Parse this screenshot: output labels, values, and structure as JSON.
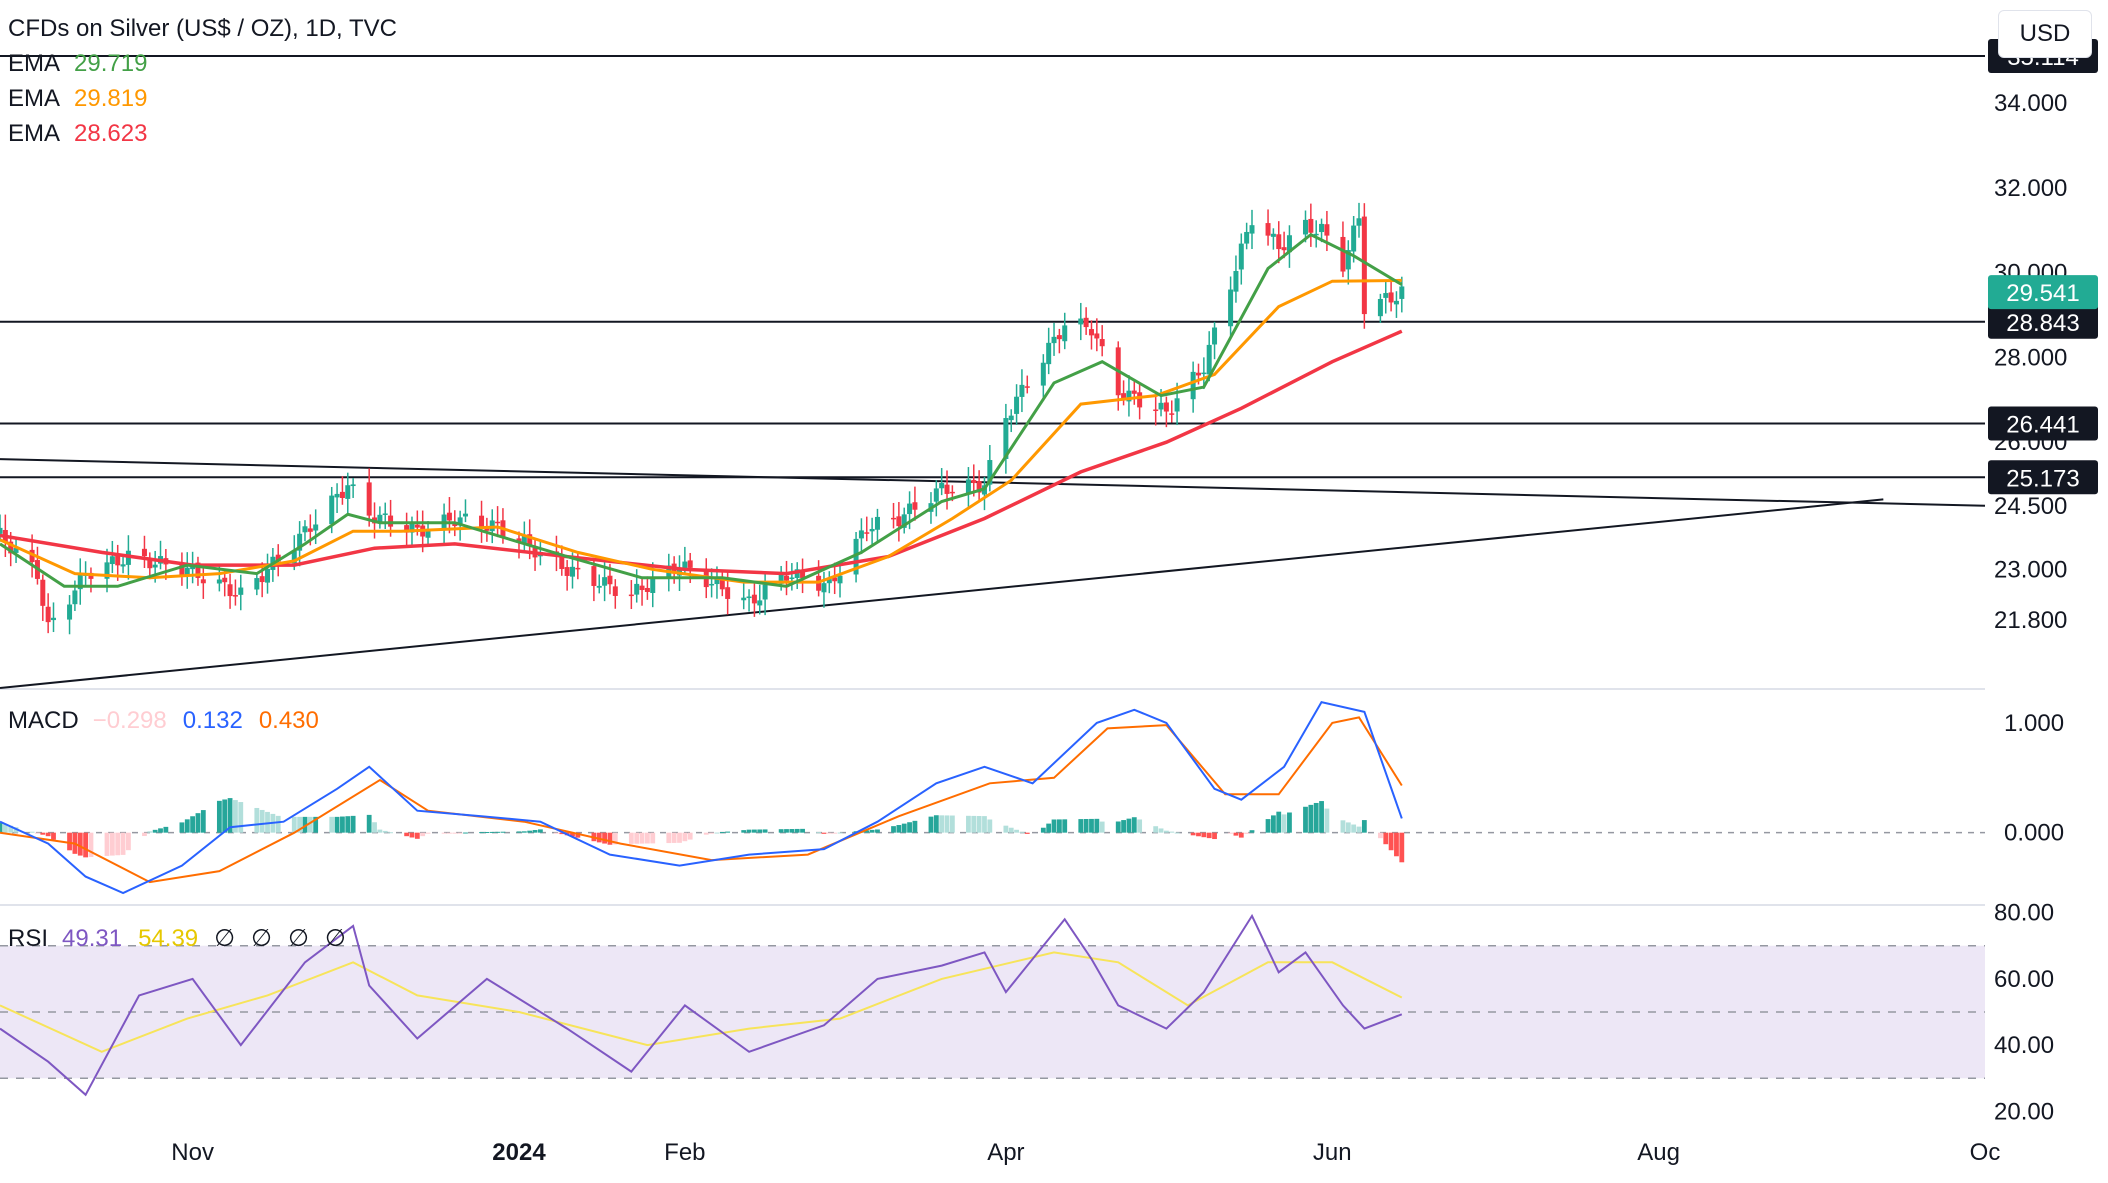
{
  "header": {
    "title": "CFDs on Silver (US$ / OZ), 1D, TVC",
    "currency_button": "USD",
    "ema_rows": [
      {
        "label": "EMA",
        "value": "29.719",
        "color": "#43a047"
      },
      {
        "label": "EMA",
        "value": "29.819",
        "color": "#ff9800"
      },
      {
        "label": "EMA",
        "value": "28.623",
        "color": "#f23645"
      }
    ]
  },
  "colors": {
    "up": "#22ab94",
    "down": "#f23645",
    "macd_line": "#2962ff",
    "signal_line": "#ff6d00",
    "hist_up_strong": "#26a69a",
    "hist_up_weak": "#b2dfdb",
    "hist_down_strong": "#ff5252",
    "hist_down_weak": "#ffcdd2",
    "rsi_line": "#7e57c2",
    "rsi_ma": "#f7e45a",
    "rsi_band": "#ede7f6"
  },
  "chart_data": [
    {
      "type": "candlestick",
      "title": "CFDs on Silver (US$ / OZ), 1D, TVC",
      "x_labels": [
        "Nov",
        "2024",
        "Feb",
        "Apr",
        "Jun",
        "Aug",
        "Oc"
      ],
      "x_label_dates": [
        "2023-11-01",
        "2024-01-01",
        "2024-02-01",
        "2024-04-01",
        "2024-06-01",
        "2024-08-01",
        "2024-10-01"
      ],
      "date_range": [
        "2023-09-26",
        "2024-10-01"
      ],
      "y_ticks": [
        "34.000",
        "32.000",
        "30.000",
        "28.000",
        "26.000",
        "24.500",
        "23.000",
        "21.800"
      ],
      "y_range": [
        20.2,
        36.2
      ],
      "price_label": "29.541",
      "horizontal_levels": [
        {
          "value": 35.114,
          "label": "35.114"
        },
        {
          "value": 28.843,
          "label": "28.843"
        },
        {
          "value": 26.441,
          "label": "26.441"
        },
        {
          "value": 25.173,
          "label": "25.173"
        }
      ],
      "trendlines": [
        {
          "from": [
            "2023-09-26",
            25.6
          ],
          "to": [
            "2024-10-01",
            24.5
          ]
        },
        {
          "from": [
            "2023-09-26",
            20.2
          ],
          "to": [
            "2024-09-12",
            24.65
          ]
        }
      ],
      "close_path": [
        [
          "2023-09-26",
          23.8
        ],
        [
          "2023-10-03",
          22.9
        ],
        [
          "2023-10-05",
          21.6
        ],
        [
          "2023-10-12",
          22.9
        ],
        [
          "2023-10-20",
          23.3
        ],
        [
          "2023-10-31",
          23.0
        ],
        [
          "2023-11-10",
          22.4
        ],
        [
          "2023-11-20",
          23.6
        ],
        [
          "2023-11-30",
          25.0
        ],
        [
          "2023-12-04",
          24.3
        ],
        [
          "2023-12-13",
          23.9
        ],
        [
          "2023-12-20",
          24.2
        ],
        [
          "2023-12-28",
          24.0
        ],
        [
          "2024-01-10",
          23.0
        ],
        [
          "2024-01-22",
          22.4
        ],
        [
          "2024-01-31",
          23.1
        ],
        [
          "2024-02-13",
          22.2
        ],
        [
          "2024-02-20",
          22.9
        ],
        [
          "2024-02-28",
          22.6
        ],
        [
          "2024-03-06",
          24.0
        ],
        [
          "2024-03-12",
          24.2
        ],
        [
          "2024-03-20",
          24.9
        ],
        [
          "2024-03-28",
          25.0
        ],
        [
          "2024-04-01",
          26.6
        ],
        [
          "2024-04-12",
          28.8
        ],
        [
          "2024-04-17",
          28.7
        ],
        [
          "2024-04-22",
          27.2
        ],
        [
          "2024-05-01",
          26.7
        ],
        [
          "2024-05-08",
          27.8
        ],
        [
          "2024-05-17",
          31.3
        ],
        [
          "2024-05-22",
          30.6
        ],
        [
          "2024-05-27",
          31.1
        ],
        [
          "2024-05-30",
          31.0
        ],
        [
          "2024-06-03",
          30.2
        ],
        [
          "2024-06-06",
          31.3
        ],
        [
          "2024-06-07",
          29.2
        ],
        [
          "2024-06-12",
          29.4
        ],
        [
          "2024-06-14",
          29.54
        ]
      ],
      "ema_fast": [
        [
          "2023-09-26",
          23.6
        ],
        [
          "2023-10-08",
          22.6
        ],
        [
          "2023-10-18",
          22.6
        ],
        [
          "2023-10-31",
          23.1
        ],
        [
          "2023-11-13",
          22.9
        ],
        [
          "2023-11-22",
          23.6
        ],
        [
          "2023-11-30",
          24.3
        ],
        [
          "2023-12-06",
          24.1
        ],
        [
          "2023-12-20",
          24.1
        ],
        [
          "2024-01-10",
          23.3
        ],
        [
          "2024-01-24",
          22.8
        ],
        [
          "2024-02-08",
          22.8
        ],
        [
          "2024-02-20",
          22.6
        ],
        [
          "2024-03-05",
          23.4
        ],
        [
          "2024-03-20",
          24.6
        ],
        [
          "2024-03-28",
          24.9
        ],
        [
          "2024-04-10",
          27.4
        ],
        [
          "2024-04-19",
          27.9
        ],
        [
          "2024-04-30",
          27.1
        ],
        [
          "2024-05-08",
          27.3
        ],
        [
          "2024-05-20",
          30.1
        ],
        [
          "2024-05-28",
          30.9
        ],
        [
          "2024-06-05",
          30.4
        ],
        [
          "2024-06-14",
          29.72
        ]
      ],
      "ema_mid": [
        [
          "2023-09-26",
          23.7
        ],
        [
          "2023-10-10",
          22.9
        ],
        [
          "2023-10-24",
          22.8
        ],
        [
          "2023-11-06",
          22.9
        ],
        [
          "2023-11-20",
          23.2
        ],
        [
          "2023-12-01",
          23.9
        ],
        [
          "2023-12-10",
          23.9
        ],
        [
          "2023-12-28",
          24.0
        ],
        [
          "2024-01-12",
          23.4
        ],
        [
          "2024-01-26",
          23.0
        ],
        [
          "2024-02-12",
          22.7
        ],
        [
          "2024-02-26",
          22.7
        ],
        [
          "2024-03-10",
          23.3
        ],
        [
          "2024-03-22",
          24.2
        ],
        [
          "2024-04-02",
          25.1
        ],
        [
          "2024-04-15",
          26.9
        ],
        [
          "2024-04-29",
          27.1
        ],
        [
          "2024-05-10",
          27.6
        ],
        [
          "2024-05-22",
          29.2
        ],
        [
          "2024-06-01",
          29.8
        ],
        [
          "2024-06-14",
          29.82
        ]
      ],
      "ema_slow": [
        [
          "2023-09-26",
          23.8
        ],
        [
          "2023-10-15",
          23.4
        ],
        [
          "2023-11-01",
          23.1
        ],
        [
          "2023-11-20",
          23.1
        ],
        [
          "2023-12-05",
          23.5
        ],
        [
          "2023-12-20",
          23.6
        ],
        [
          "2024-01-10",
          23.3
        ],
        [
          "2024-02-01",
          23.0
        ],
        [
          "2024-02-20",
          22.9
        ],
        [
          "2024-03-10",
          23.3
        ],
        [
          "2024-03-28",
          24.2
        ],
        [
          "2024-04-15",
          25.3
        ],
        [
          "2024-05-01",
          26.0
        ],
        [
          "2024-05-15",
          26.8
        ],
        [
          "2024-06-01",
          27.9
        ],
        [
          "2024-06-14",
          28.62
        ]
      ]
    },
    {
      "type": "line",
      "title": "MACD",
      "legend_values": [
        "−0.298",
        "0.132",
        "0.430"
      ],
      "y_ticks": [
        "1.000",
        "0.000"
      ],
      "y_range": [
        -0.65,
        1.3
      ],
      "macd": [
        [
          "2023-09-26",
          0.1
        ],
        [
          "2023-10-05",
          -0.1
        ],
        [
          "2023-10-12",
          -0.4
        ],
        [
          "2023-10-19",
          -0.55
        ],
        [
          "2023-10-30",
          -0.3
        ],
        [
          "2023-11-08",
          0.05
        ],
        [
          "2023-11-18",
          0.1
        ],
        [
          "2023-11-28",
          0.4
        ],
        [
          "2023-12-04",
          0.6
        ],
        [
          "2023-12-13",
          0.2
        ],
        [
          "2023-12-25",
          0.15
        ],
        [
          "2024-01-05",
          0.1
        ],
        [
          "2024-01-18",
          -0.2
        ],
        [
          "2024-01-31",
          -0.3
        ],
        [
          "2024-02-13",
          -0.2
        ],
        [
          "2024-02-27",
          -0.15
        ],
        [
          "2024-03-08",
          0.1
        ],
        [
          "2024-03-19",
          0.45
        ],
        [
          "2024-03-28",
          0.6
        ],
        [
          "2024-04-06",
          0.45
        ],
        [
          "2024-04-18",
          1.0
        ],
        [
          "2024-04-25",
          1.12
        ],
        [
          "2024-05-01",
          1.0
        ],
        [
          "2024-05-10",
          0.4
        ],
        [
          "2024-05-15",
          0.3
        ],
        [
          "2024-05-23",
          0.6
        ],
        [
          "2024-05-30",
          1.19
        ],
        [
          "2024-06-07",
          1.1
        ],
        [
          "2024-06-14",
          0.13
        ]
      ],
      "signal": [
        [
          "2023-09-26",
          0.0
        ],
        [
          "2023-10-10",
          -0.1
        ],
        [
          "2023-10-24",
          -0.45
        ],
        [
          "2023-11-06",
          -0.35
        ],
        [
          "2023-11-20",
          0.0
        ],
        [
          "2023-12-06",
          0.48
        ],
        [
          "2023-12-15",
          0.2
        ],
        [
          "2024-01-02",
          0.1
        ],
        [
          "2024-01-20",
          -0.1
        ],
        [
          "2024-02-06",
          -0.25
        ],
        [
          "2024-02-24",
          -0.2
        ],
        [
          "2024-03-12",
          0.15
        ],
        [
          "2024-03-29",
          0.45
        ],
        [
          "2024-04-10",
          0.5
        ],
        [
          "2024-04-20",
          0.95
        ],
        [
          "2024-05-01",
          0.98
        ],
        [
          "2024-05-12",
          0.35
        ],
        [
          "2024-05-22",
          0.35
        ],
        [
          "2024-06-01",
          1.0
        ],
        [
          "2024-06-06",
          1.05
        ],
        [
          "2024-06-14",
          0.43
        ]
      ],
      "histogram_end": -0.298
    },
    {
      "type": "line",
      "title": "RSI",
      "legend_values": [
        "49.31",
        "54.39",
        "∅",
        "∅",
        "∅",
        "∅"
      ],
      "y_ticks": [
        "80.00",
        "60.00",
        "40.00",
        "20.00"
      ],
      "y_range": [
        18,
        82
      ],
      "bands": [
        70,
        50,
        30
      ],
      "rsi": [
        [
          "2023-09-26",
          45
        ],
        [
          "2023-10-05",
          35
        ],
        [
          "2023-10-12",
          25
        ],
        [
          "2023-10-22",
          55
        ],
        [
          "2023-11-01",
          60
        ],
        [
          "2023-11-10",
          40
        ],
        [
          "2023-11-22",
          65
        ],
        [
          "2023-12-01",
          76
        ],
        [
          "2023-12-04",
          58
        ],
        [
          "2023-12-13",
          42
        ],
        [
          "2023-12-26",
          60
        ],
        [
          "2024-01-10",
          45
        ],
        [
          "2024-01-22",
          32
        ],
        [
          "2024-02-01",
          52
        ],
        [
          "2024-02-13",
          38
        ],
        [
          "2024-02-27",
          46
        ],
        [
          "2024-03-08",
          60
        ],
        [
          "2024-03-20",
          64
        ],
        [
          "2024-03-28",
          68
        ],
        [
          "2024-04-01",
          56
        ],
        [
          "2024-04-12",
          78
        ],
        [
          "2024-04-17",
          66
        ],
        [
          "2024-04-22",
          52
        ],
        [
          "2024-05-01",
          45
        ],
        [
          "2024-05-08",
          56
        ],
        [
          "2024-05-17",
          79
        ],
        [
          "2024-05-22",
          62
        ],
        [
          "2024-05-27",
          68
        ],
        [
          "2024-06-03",
          52
        ],
        [
          "2024-06-07",
          45
        ],
        [
          "2024-06-14",
          49.31
        ]
      ],
      "rsi_ma": [
        [
          "2023-09-26",
          52
        ],
        [
          "2023-10-15",
          38
        ],
        [
          "2023-10-31",
          48
        ],
        [
          "2023-11-15",
          55
        ],
        [
          "2023-12-01",
          65
        ],
        [
          "2023-12-13",
          55
        ],
        [
          "2024-01-01",
          50
        ],
        [
          "2024-01-25",
          40
        ],
        [
          "2024-02-13",
          45
        ],
        [
          "2024-03-01",
          48
        ],
        [
          "2024-03-20",
          60
        ],
        [
          "2024-04-10",
          68
        ],
        [
          "2024-04-22",
          65
        ],
        [
          "2024-05-05",
          52
        ],
        [
          "2024-05-20",
          65
        ],
        [
          "2024-06-01",
          65
        ],
        [
          "2024-06-14",
          54.39
        ]
      ]
    }
  ]
}
